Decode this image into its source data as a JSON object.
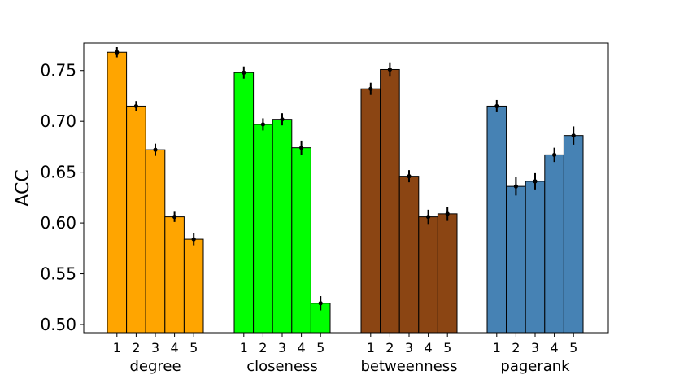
{
  "chart_data": {
    "type": "bar",
    "ylabel": "ACC",
    "ylim": [
      0.492,
      0.777
    ],
    "yticks": [
      0.5,
      0.55,
      0.6,
      0.65,
      0.7,
      0.75
    ],
    "ytick_labels": [
      "0.50",
      "0.55",
      "0.60",
      "0.65",
      "0.70",
      "0.75"
    ],
    "grid": false,
    "groups": [
      {
        "name": "degree",
        "color": "#FFA500",
        "bars": [
          {
            "label": "1",
            "value": 0.768,
            "err": 0.005
          },
          {
            "label": "2",
            "value": 0.715,
            "err": 0.005
          },
          {
            "label": "3",
            "value": 0.672,
            "err": 0.006
          },
          {
            "label": "4",
            "value": 0.606,
            "err": 0.005
          },
          {
            "label": "5",
            "value": 0.584,
            "err": 0.006
          }
        ]
      },
      {
        "name": "closeness",
        "color": "#00FF00",
        "bars": [
          {
            "label": "1",
            "value": 0.748,
            "err": 0.006
          },
          {
            "label": "2",
            "value": 0.697,
            "err": 0.006
          },
          {
            "label": "3",
            "value": 0.702,
            "err": 0.006
          },
          {
            "label": "4",
            "value": 0.674,
            "err": 0.007
          },
          {
            "label": "5",
            "value": 0.521,
            "err": 0.007
          }
        ]
      },
      {
        "name": "betweenness",
        "color": "#8B4513",
        "bars": [
          {
            "label": "1",
            "value": 0.732,
            "err": 0.006
          },
          {
            "label": "2",
            "value": 0.751,
            "err": 0.007
          },
          {
            "label": "3",
            "value": 0.646,
            "err": 0.006
          },
          {
            "label": "4",
            "value": 0.606,
            "err": 0.007
          },
          {
            "label": "5",
            "value": 0.609,
            "err": 0.007
          }
        ]
      },
      {
        "name": "pagerank",
        "color": "#4682B4",
        "bars": [
          {
            "label": "1",
            "value": 0.715,
            "err": 0.006
          },
          {
            "label": "2",
            "value": 0.636,
            "err": 0.009
          },
          {
            "label": "3",
            "value": 0.641,
            "err": 0.008
          },
          {
            "label": "4",
            "value": 0.667,
            "err": 0.007
          },
          {
            "label": "5",
            "value": 0.686,
            "err": 0.009
          }
        ]
      }
    ]
  }
}
